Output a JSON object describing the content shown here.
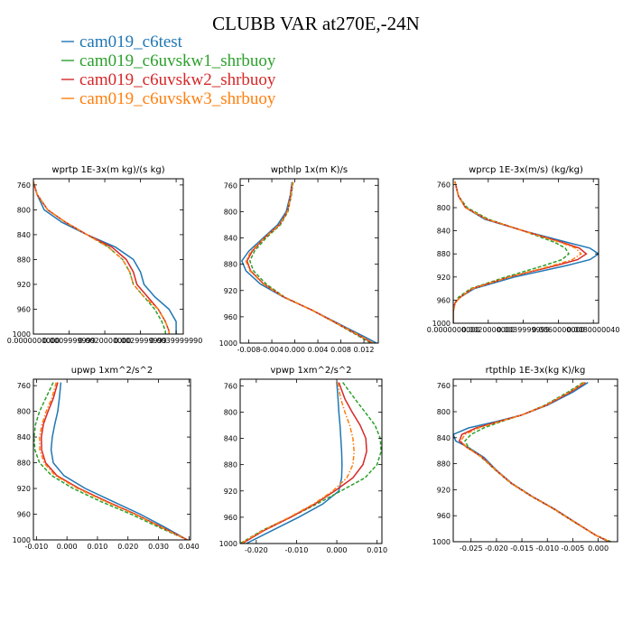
{
  "figure": {
    "title": "CLUBB VAR at270E,-24N"
  },
  "legend": [
    {
      "label": "cam019_c6test",
      "color": "#1f77b4"
    },
    {
      "label": "cam019_c6uvskw1_shrbuoy",
      "color": "#2ca02c"
    },
    {
      "label": "cam019_c6uvskw2_shrbuoy",
      "color": "#d62728"
    },
    {
      "label": "cam019_c6uvskw3_shrbuoy",
      "color": "#ff7f0e"
    }
  ],
  "chart_data": [
    {
      "type": "line",
      "title": "wprtp  1E-3x(m kg)/(s kg)",
      "xlim": [
        0,
        0.0042
      ],
      "ylim": [
        1000,
        750
      ],
      "xticks": [
        0,
        0.001,
        0.002,
        0.003,
        0.004
      ],
      "xtick_labels": [
        "0.0000000000",
        "0.0009999999",
        "0.0020000000",
        "0.0029999999",
        "0.0039999990"
      ],
      "yticks": [
        760,
        800,
        840,
        880,
        920,
        960,
        1000
      ],
      "ytick_labels": [
        "760",
        "800",
        "840",
        "880",
        "920",
        "960",
        "1000"
      ],
      "y": [
        755,
        775,
        800,
        820,
        840,
        860,
        880,
        900,
        920,
        940,
        960,
        980,
        995,
        1000
      ],
      "series": [
        {
          "values": [
            0.0,
            0.0001,
            0.0003,
            0.0008,
            0.0015,
            0.0023,
            0.0028,
            0.003,
            0.0031,
            0.0034,
            0.0038,
            0.004,
            0.004,
            0.004
          ]
        },
        {
          "values": [
            0.0,
            0.0001,
            0.0004,
            0.0009,
            0.0015,
            0.0021,
            0.0025,
            0.0027,
            0.0028,
            0.0031,
            0.0034,
            0.0036,
            0.0037,
            0.0037
          ]
        },
        {
          "values": [
            0.0,
            0.0001,
            0.0004,
            0.0009,
            0.0015,
            0.0022,
            0.0026,
            0.0028,
            0.0029,
            0.0032,
            0.0035,
            0.0037,
            0.0038,
            0.0038
          ]
        },
        {
          "values": [
            0.0,
            0.0001,
            0.0004,
            0.0009,
            0.0015,
            0.0021,
            0.0025,
            0.0027,
            0.0028,
            0.0031,
            0.0035,
            0.0037,
            0.0038,
            0.0038
          ]
        }
      ]
    },
    {
      "type": "line",
      "title": "wpthlp  1x(m K)/s",
      "xlim": [
        -0.0095,
        0.0145
      ],
      "ylim": [
        1000,
        750
      ],
      "xticks": [
        -0.008,
        -0.004,
        0,
        0.004,
        0.008,
        0.012
      ],
      "xtick_labels": [
        "-0.008",
        "-0.004",
        "0.000",
        "0.004",
        "0.008",
        "0.012"
      ],
      "yticks": [
        760,
        800,
        840,
        880,
        920,
        960,
        1000
      ],
      "ytick_labels": [
        "760",
        "800",
        "840",
        "880",
        "920",
        "960",
        "1000"
      ],
      "y": [
        755,
        775,
        800,
        820,
        840,
        860,
        875,
        890,
        910,
        930,
        950,
        970,
        990,
        1000
      ],
      "series": [
        {
          "values": [
            -0.0005,
            -0.0008,
            -0.0015,
            -0.003,
            -0.0055,
            -0.008,
            -0.0092,
            -0.0085,
            -0.006,
            -0.002,
            0.003,
            0.0075,
            0.012,
            0.0142
          ]
        },
        {
          "values": [
            -0.0003,
            -0.0006,
            -0.0012,
            -0.0025,
            -0.005,
            -0.007,
            -0.0078,
            -0.0072,
            -0.005,
            -0.0018,
            0.003,
            0.0072,
            0.0112,
            0.0132
          ]
        },
        {
          "values": [
            -0.0004,
            -0.0007,
            -0.0013,
            -0.0027,
            -0.0053,
            -0.0074,
            -0.0083,
            -0.0077,
            -0.0054,
            -0.0019,
            0.003,
            0.0073,
            0.0115,
            0.0135
          ]
        },
        {
          "values": [
            -0.0004,
            -0.0007,
            -0.0013,
            -0.0027,
            -0.0053,
            -0.0076,
            -0.0085,
            -0.0078,
            -0.0055,
            -0.0019,
            0.003,
            0.0073,
            0.0116,
            0.0136
          ]
        }
      ]
    },
    {
      "type": "line",
      "title": "wprcp  1E-3x(m/s) (kg/kg)",
      "xlim": [
        0,
        0.0083
      ],
      "ylim": [
        1000,
        750
      ],
      "xticks": [
        0,
        0.002,
        0.004,
        0.006,
        0.008
      ],
      "xtick_labels": [
        "0.0000000000",
        "0.0020000000",
        "0.0039999999",
        "0.0060000000",
        "0.0080000040"
      ],
      "yticks": [
        760,
        800,
        840,
        880,
        920,
        960,
        1000
      ],
      "ytick_labels": [
        "760",
        "800",
        "840",
        "880",
        "920",
        "960",
        "1000"
      ],
      "y": [
        755,
        780,
        800,
        820,
        840,
        860,
        870,
        880,
        890,
        900,
        920,
        940,
        955,
        965,
        980,
        1000
      ],
      "series": [
        {
          "values": [
            0.0001,
            0.0003,
            0.0007,
            0.0018,
            0.004,
            0.0065,
            0.0078,
            0.0083,
            0.0078,
            0.0065,
            0.0035,
            0.0012,
            0.0004,
            0.0001,
            0.0,
            0.0
          ]
        },
        {
          "values": [
            0.0001,
            0.0003,
            0.0008,
            0.002,
            0.004,
            0.0058,
            0.0064,
            0.0066,
            0.0062,
            0.0052,
            0.003,
            0.001,
            0.0003,
            0.0001,
            0.0,
            0.0
          ]
        },
        {
          "values": [
            0.0001,
            0.0003,
            0.0007,
            0.0019,
            0.004,
            0.0062,
            0.0072,
            0.0076,
            0.0071,
            0.0059,
            0.0032,
            0.0011,
            0.0004,
            0.0001,
            0.0,
            0.0
          ]
        },
        {
          "values": [
            0.0001,
            0.0003,
            0.0007,
            0.0019,
            0.004,
            0.0061,
            0.007,
            0.0073,
            0.0068,
            0.0057,
            0.0032,
            0.0011,
            0.0004,
            0.0001,
            0.0,
            0.0
          ]
        }
      ]
    },
    {
      "type": "line",
      "title": "upwp  1xm^2/s^2",
      "xlim": [
        -0.011,
        0.0405
      ],
      "ylim": [
        1000,
        750
      ],
      "xticks": [
        -0.01,
        0,
        0.01,
        0.02,
        0.03,
        0.04
      ],
      "xtick_labels": [
        "-0.010",
        "0.000",
        "0.010",
        "0.020",
        "0.030",
        "0.040"
      ],
      "yticks": [
        760,
        800,
        840,
        880,
        920,
        960,
        1000
      ],
      "ytick_labels": [
        "760",
        "800",
        "840",
        "880",
        "920",
        "960",
        "1000"
      ],
      "y": [
        755,
        780,
        800,
        820,
        840,
        860,
        880,
        900,
        920,
        940,
        960,
        980,
        1000
      ],
      "series": [
        {
          "values": [
            -0.002,
            -0.0025,
            -0.003,
            -0.004,
            -0.0048,
            -0.0052,
            -0.0045,
            -0.001,
            0.006,
            0.015,
            0.024,
            0.032,
            0.0395
          ]
        },
        {
          "values": [
            -0.0045,
            -0.007,
            -0.009,
            -0.0103,
            -0.0108,
            -0.0105,
            -0.009,
            -0.005,
            0.002,
            0.011,
            0.021,
            0.03,
            0.0395
          ]
        },
        {
          "values": [
            -0.003,
            -0.0045,
            -0.0062,
            -0.0077,
            -0.0084,
            -0.0083,
            -0.007,
            -0.0033,
            0.004,
            0.013,
            0.0225,
            0.031,
            0.0395
          ]
        },
        {
          "values": [
            -0.0035,
            -0.005,
            -0.0068,
            -0.0082,
            -0.009,
            -0.0089,
            -0.0075,
            -0.0038,
            0.0035,
            0.0125,
            0.0222,
            0.0308,
            0.0395
          ]
        }
      ]
    },
    {
      "type": "line",
      "title": "vpwp  1xm^2/s^2",
      "xlim": [
        -0.024,
        0.0112
      ],
      "ylim": [
        1000,
        750
      ],
      "xticks": [
        -0.02,
        -0.01,
        0,
        0.01
      ],
      "xtick_labels": [
        "-0.020",
        "-0.010",
        "0.000",
        "0.010"
      ],
      "yticks": [
        760,
        800,
        840,
        880,
        920,
        960,
        1000
      ],
      "ytick_labels": [
        "760",
        "800",
        "840",
        "880",
        "920",
        "960",
        "1000"
      ],
      "y": [
        755,
        780,
        800,
        820,
        840,
        860,
        880,
        900,
        920,
        940,
        960,
        980,
        1000
      ],
      "series": [
        {
          "values": [
            0.0,
            0.0003,
            0.0005,
            0.0008,
            0.001,
            0.0012,
            0.0013,
            0.0012,
            0.0005,
            -0.0035,
            -0.0095,
            -0.016,
            -0.0225
          ]
        },
        {
          "values": [
            0.0015,
            0.0045,
            0.007,
            0.0095,
            0.0108,
            0.011,
            0.01,
            0.007,
            0.001,
            -0.005,
            -0.0115,
            -0.0185,
            -0.024
          ]
        },
        {
          "values": [
            0.0005,
            0.002,
            0.0038,
            0.0058,
            0.0072,
            0.0074,
            0.0065,
            0.004,
            -0.0005,
            -0.0055,
            -0.0115,
            -0.018,
            -0.0235
          ]
        },
        {
          "values": [
            0.0002,
            0.001,
            0.002,
            0.0032,
            0.004,
            0.0043,
            0.004,
            0.0025,
            -0.001,
            -0.0058,
            -0.0118,
            -0.0183,
            -0.0238
          ]
        }
      ]
    },
    {
      "type": "line",
      "title": "rtpthlp  1E-3x(kg K)/kg",
      "xlim": [
        -0.0285,
        0.0038
      ],
      "ylim": [
        1000,
        750
      ],
      "xticks": [
        -0.025,
        -0.02,
        -0.015,
        -0.01,
        -0.005,
        0
      ],
      "xtick_labels": [
        "-0.025",
        "-0.020",
        "-0.015",
        "-0.010",
        "-0.005",
        "0.000"
      ],
      "yticks": [
        760,
        800,
        840,
        880,
        920,
        960,
        1000
      ],
      "ytick_labels": [
        "760",
        "800",
        "840",
        "880",
        "920",
        "960",
        "1000"
      ],
      "y": [
        755,
        770,
        790,
        805,
        815,
        825,
        835,
        845,
        855,
        870,
        890,
        910,
        930,
        950,
        970,
        990,
        1000
      ],
      "series": [
        {
          "values": [
            -0.002,
            -0.005,
            -0.01,
            -0.015,
            -0.02,
            -0.0255,
            -0.0285,
            -0.028,
            -0.0255,
            -0.0225,
            -0.02,
            -0.017,
            -0.013,
            -0.0085,
            -0.0045,
            -0.0005,
            0.002
          ]
        },
        {
          "values": [
            -0.003,
            -0.006,
            -0.0105,
            -0.015,
            -0.019,
            -0.0225,
            -0.025,
            -0.0262,
            -0.0255,
            -0.023,
            -0.0202,
            -0.0172,
            -0.0132,
            -0.0087,
            -0.0047,
            -0.0005,
            0.0025
          ]
        },
        {
          "values": [
            -0.0025,
            -0.0055,
            -0.0102,
            -0.015,
            -0.0195,
            -0.024,
            -0.0268,
            -0.0273,
            -0.0258,
            -0.0228,
            -0.0201,
            -0.0171,
            -0.0131,
            -0.0086,
            -0.0046,
            -0.0005,
            0.0022
          ]
        },
        {
          "values": [
            -0.0027,
            -0.0057,
            -0.0103,
            -0.015,
            -0.0193,
            -0.0235,
            -0.0262,
            -0.027,
            -0.0258,
            -0.0229,
            -0.0201,
            -0.0171,
            -0.0131,
            -0.0086,
            -0.0046,
            -0.0005,
            0.0023
          ]
        }
      ]
    }
  ]
}
